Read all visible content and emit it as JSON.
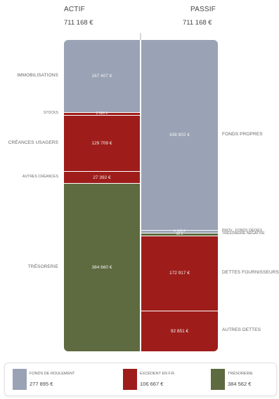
{
  "header": {
    "actif_title": "ACTIF",
    "actif_total": "711 168 €",
    "passif_title": "PASSIF",
    "passif_total": "711 168 €"
  },
  "colors": {
    "grey": "#9aa3b5",
    "red": "#9e1d1a",
    "olive": "#5e6a3f"
  },
  "chart_data": {
    "type": "stacked-bar",
    "columns": [
      {
        "name": "ACTIF",
        "total": 711168,
        "segments": [
          {
            "label": "IMMOBILISATIONS",
            "value": 167407,
            "value_label": "167 407 €",
            "color": "grey"
          },
          {
            "label": "STOCKS",
            "value": 2000,
            "value_label": "2 000 €",
            "color": "red"
          },
          {
            "label": "CRÉANCES USAGERS",
            "value": 129709,
            "value_label": "129 709 €",
            "color": "red"
          },
          {
            "label": "AUTRES CRÉANCES",
            "value": 27392,
            "value_label": "27 392 €",
            "color": "red"
          },
          {
            "label": "TRÉSORERIE",
            "value": 384660,
            "value_label": "384 660 €",
            "color": "olive"
          }
        ]
      },
      {
        "name": "PASSIF",
        "total": 711168,
        "segments": [
          {
            "label": "FONDS PROPRES",
            "value": 438802,
            "value_label": "438 802 €",
            "color": "grey"
          },
          {
            "label": "PROV., FONDS DÉDIÉS",
            "value": 6500,
            "value_label": "6 500 €",
            "color": "grey"
          },
          {
            "label": "TRÉSORERIE NÉGATIVE",
            "value": 98,
            "value_label": "98 €",
            "color": "olive"
          },
          {
            "label": "DETTES FOURNISSEURS",
            "value": 172917,
            "value_label": "172 917 €",
            "color": "red"
          },
          {
            "label": "AUTRES DETTES",
            "value": 92851,
            "value_label": "92 851 €",
            "color": "red"
          }
        ]
      }
    ]
  },
  "legend": [
    {
      "label": "FONDS DE ROULEMENT",
      "value": "277 895 €",
      "color": "grey"
    },
    {
      "label": "EXCÉDENT EN F.R.",
      "value": "106 667 €",
      "color": "red"
    },
    {
      "label": "TRÉSORERIE",
      "value": "384 562 €",
      "color": "olive"
    }
  ]
}
